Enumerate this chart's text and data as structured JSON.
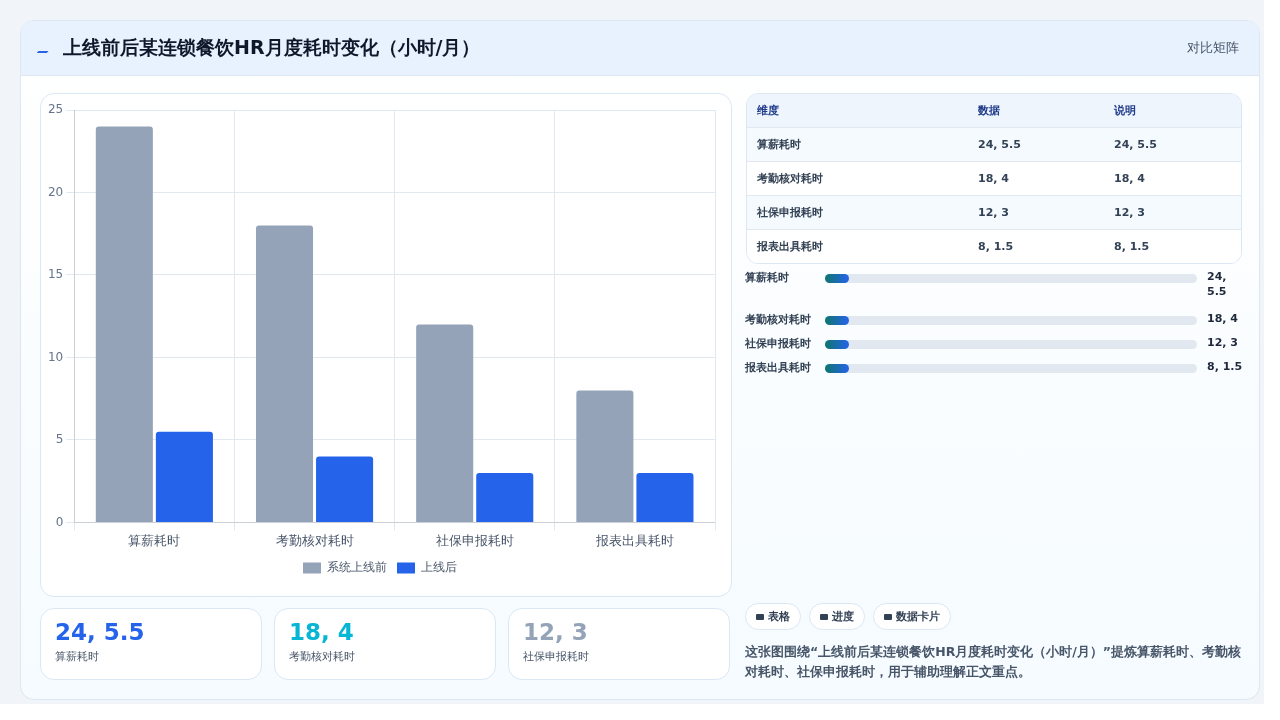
{
  "chart_data": [
    {
      "type": "bar",
      "title": "上线前后某连锁餐饮HR月度耗时变化（小时/月）",
      "categories": [
        "算薪耗时",
        "考勤核对耗时",
        "社保申报耗时",
        "报表出具耗时"
      ],
      "series": [
        {
          "name": "系统上线前",
          "color": "#94a3b8",
          "values": [
            24,
            18,
            12,
            8
          ]
        },
        {
          "name": "上线后",
          "color": "#2563eb",
          "values": [
            5.5,
            4,
            3,
            3
          ]
        }
      ],
      "ylim": [
        0,
        25
      ],
      "yticks": [
        0,
        5,
        10,
        15,
        20,
        25
      ],
      "grid": true,
      "legend": "bottom"
    },
    {
      "type": "other",
      "annotations": [
        "维度",
        "数据",
        "说明",
        "算薪耗时",
        "24, 5.5",
        "24, 5.5",
        "考勤核对耗时",
        "18, 4",
        "18, 4",
        "社保申报耗时",
        "12, 3",
        "12, 3",
        "报表出具耗时",
        "8, 1.5",
        "8, 1.5"
      ]
    },
    {
      "type": "other",
      "annotations": [
        "算薪耗时",
        "24, 5.5",
        "考勤核对耗时",
        "18, 4",
        "社保申报耗时",
        "12, 3",
        "报表出具耗时",
        "8, 1.5"
      ]
    },
    {
      "type": "other",
      "annotations": [
        "24, 5.5",
        "算薪耗时",
        "18, 4",
        "考勤核对耗时",
        "12, 3",
        "社保申报耗时"
      ]
    },
    {
      "type": "other",
      "annotations": [
        "对比矩阵",
        "表格",
        "进度",
        "数据卡片",
        "这张图围绕“上线前后某连锁餐饮HR月度耗时变化（小时/月）”提炼算薪耗时、考勤核对耗时、社保申报耗时，用于辅助理解正文重点。"
      ]
    }
  ]
}
